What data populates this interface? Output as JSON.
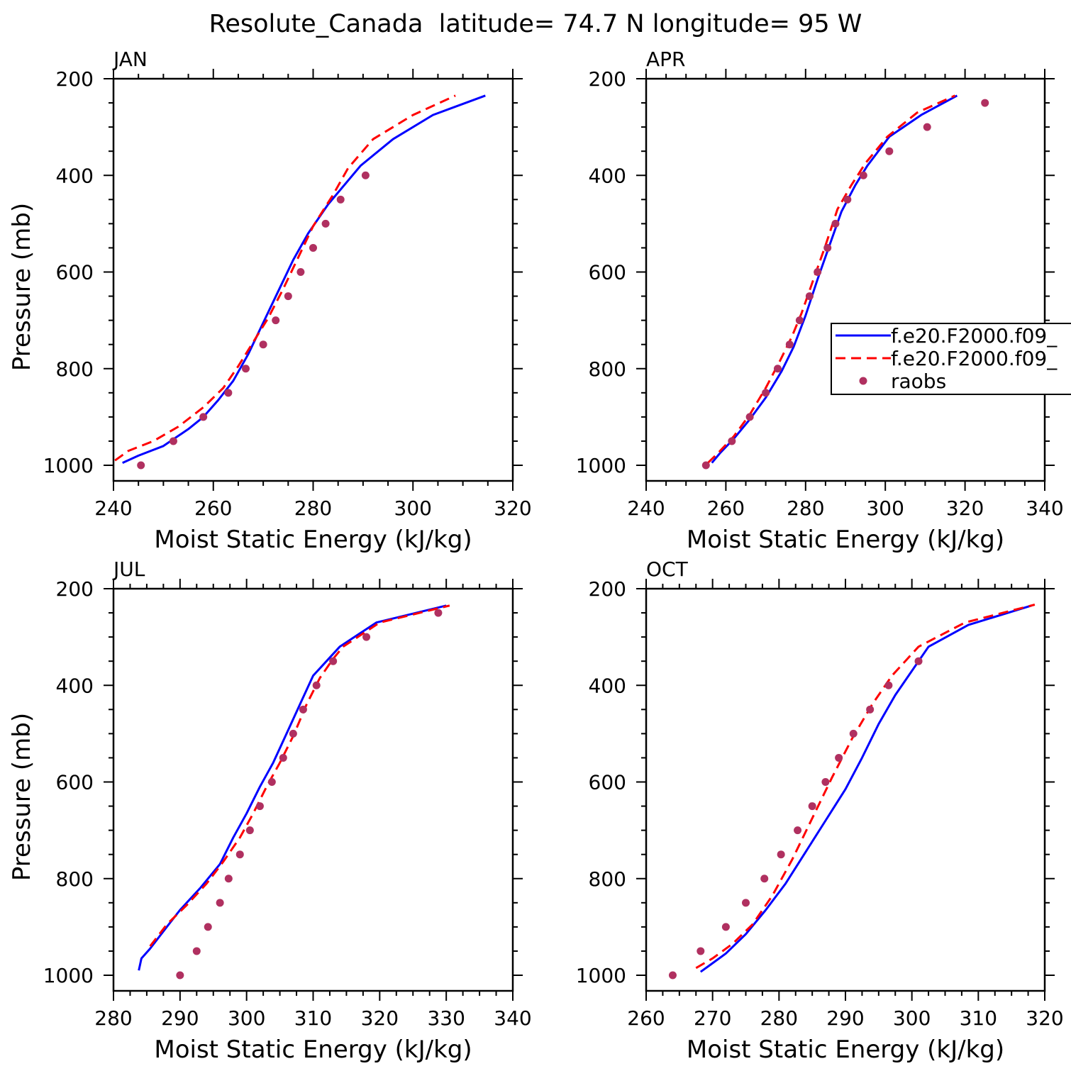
{
  "figure": {
    "title": "Resolute_Canada  latitude= 74.7 N longitude= 95 W",
    "legend": {
      "entries": [
        "f.e20.F2000.f09_",
        "f.e20.F2000.f09_",
        "raobs"
      ]
    }
  },
  "colors": {
    "model1": "#0000ff",
    "model2": "#ff0000",
    "raobs": "#b03060",
    "axes": "#000000"
  },
  "chart_data": [
    {
      "type": "line",
      "panel_label": "JAN",
      "xlabel": "Moist Static Energy (kJ/kg)",
      "ylabel": "Pressure (mb)",
      "xlim": [
        240,
        320
      ],
      "ylim": [
        1000,
        200
      ],
      "xticks": [
        240,
        260,
        280,
        300,
        320
      ],
      "yticks": [
        200,
        400,
        600,
        800,
        1000
      ],
      "series": [
        {
          "name": "f.e20.F2000.f09_",
          "style": "solid",
          "x": [
            241.8,
            245,
            250,
            255,
            258,
            261,
            264,
            267,
            270,
            273,
            276,
            279,
            283,
            289.5,
            296,
            304,
            314.5
          ],
          "y": [
            995,
            980,
            960,
            925,
            900,
            865,
            825,
            770,
            705,
            640,
            575,
            520,
            460,
            380,
            325,
            275,
            235
          ]
        },
        {
          "name": "f.e20.F2000.f09_",
          "style": "dashed",
          "x": [
            240.3,
            243,
            248,
            253,
            258,
            262,
            265,
            268,
            271,
            274,
            277,
            280,
            284,
            287,
            292,
            300,
            308.5
          ],
          "y": [
            990,
            970,
            950,
            920,
            880,
            840,
            795,
            745,
            695,
            635,
            570,
            505,
            440,
            385,
            325,
            275,
            235
          ]
        },
        {
          "name": "raobs",
          "style": "markers",
          "x": [
            245.5,
            252,
            258,
            263,
            266.5,
            270,
            272.5,
            275,
            277.5,
            280,
            282.5,
            285.5,
            290.5
          ],
          "y": [
            1000,
            950,
            900,
            850,
            800,
            750,
            700,
            650,
            600,
            550,
            500,
            450,
            400
          ]
        }
      ]
    },
    {
      "type": "line",
      "panel_label": "APR",
      "xlabel": "Moist Static Energy (kJ/kg)",
      "ylabel": "",
      "xlim": [
        240,
        340
      ],
      "ylim": [
        1000,
        200
      ],
      "xticks": [
        240,
        260,
        280,
        300,
        320,
        340
      ],
      "yticks": [
        200,
        400,
        600,
        800,
        1000
      ],
      "series": [
        {
          "name": "f.e20.F2000.f09_",
          "style": "solid",
          "x": [
            256.5,
            258.5,
            262,
            266,
            270,
            274,
            277,
            280,
            283,
            286,
            289,
            292.5,
            295.5,
            301,
            309,
            318
          ],
          "y": [
            995,
            975,
            945,
            905,
            860,
            805,
            755,
            690,
            615,
            545,
            475,
            420,
            380,
            320,
            275,
            235
          ]
        },
        {
          "name": "f.e20.F2000.f09_",
          "style": "dashed",
          "x": [
            255.5,
            258,
            262,
            266,
            270,
            273.5,
            276.5,
            279,
            282,
            285,
            288,
            291.5,
            295,
            300.5,
            308,
            317.5
          ],
          "y": [
            995,
            975,
            940,
            895,
            840,
            785,
            735,
            685,
            615,
            545,
            470,
            420,
            375,
            320,
            270,
            235
          ]
        },
        {
          "name": "raobs",
          "style": "markers",
          "x": [
            255,
            261.5,
            266,
            270,
            273,
            276,
            278.5,
            281,
            283,
            285.5,
            287.5,
            290.5,
            294.5,
            301,
            310.5,
            325
          ],
          "y": [
            1000,
            950,
            900,
            850,
            800,
            750,
            700,
            650,
            600,
            550,
            500,
            450,
            400,
            350,
            300,
            250
          ]
        }
      ]
    },
    {
      "type": "line",
      "panel_label": "JUL",
      "xlabel": "Moist Static Energy (kJ/kg)",
      "ylabel": "Pressure (mb)",
      "xlim": [
        280,
        340
      ],
      "ylim": [
        1000,
        200
      ],
      "xticks": [
        280,
        290,
        300,
        310,
        320,
        330,
        340
      ],
      "yticks": [
        200,
        400,
        600,
        800,
        1000
      ],
      "series": [
        {
          "name": "f.e20.F2000.f09_",
          "style": "solid",
          "x": [
            283.8,
            284.2,
            285.5,
            288,
            290,
            293,
            296,
            298,
            300,
            302,
            304,
            306,
            308,
            310,
            312,
            314,
            319.5,
            330
          ],
          "y": [
            990,
            965,
            945,
            900,
            865,
            820,
            770,
            715,
            665,
            610,
            560,
            500,
            440,
            380,
            350,
            320,
            270,
            235
          ]
        },
        {
          "name": "f.e20.F2000.f09_",
          "style": "dashed",
          "x": [
            285.5,
            288,
            291,
            294,
            296.5,
            299,
            301,
            303,
            305,
            307,
            309,
            311,
            313,
            314.5,
            320,
            330.5
          ],
          "y": [
            940,
            895,
            855,
            810,
            765,
            715,
            665,
            610,
            560,
            505,
            440,
            385,
            345,
            320,
            270,
            235
          ]
        },
        {
          "name": "raobs",
          "style": "markers",
          "x": [
            290,
            292.5,
            294.2,
            296,
            297.3,
            299,
            300.5,
            302,
            303.8,
            305.5,
            307,
            308.5,
            310.5,
            313,
            318,
            328.8
          ],
          "y": [
            1000,
            950,
            900,
            850,
            800,
            750,
            700,
            650,
            600,
            550,
            500,
            450,
            400,
            350,
            300,
            250
          ]
        }
      ]
    },
    {
      "type": "line",
      "panel_label": "OCT",
      "xlabel": "Moist Static Energy (kJ/kg)",
      "ylabel": "",
      "xlim": [
        260,
        320
      ],
      "ylim": [
        1000,
        200
      ],
      "xticks": [
        260,
        270,
        280,
        290,
        300,
        310,
        320
      ],
      "yticks": [
        200,
        400,
        600,
        800,
        1000
      ],
      "series": [
        {
          "name": "f.e20.F2000.f09_",
          "style": "solid",
          "x": [
            268.2,
            269.5,
            272,
            275,
            278,
            281,
            284,
            287,
            290,
            292.5,
            295,
            297.5,
            302.5,
            308.5,
            318
          ],
          "y": [
            993,
            980,
            955,
            915,
            865,
            810,
            745,
            680,
            615,
            550,
            480,
            420,
            320,
            275,
            235
          ]
        },
        {
          "name": "f.e20.F2000.f09_",
          "style": "dashed",
          "x": [
            267.5,
            270,
            273,
            276,
            279,
            282,
            285,
            288,
            291,
            294,
            297,
            301,
            308,
            318.5
          ],
          "y": [
            985,
            965,
            935,
            895,
            835,
            760,
            675,
            590,
            510,
            440,
            380,
            320,
            270,
            233
          ]
        },
        {
          "name": "raobs",
          "style": "markers",
          "x": [
            264,
            268.2,
            272,
            275,
            277.8,
            280.3,
            282.8,
            285,
            287,
            289,
            291.2,
            293.7,
            296.5,
            301
          ],
          "y": [
            1000,
            950,
            900,
            850,
            800,
            750,
            700,
            650,
            600,
            550,
            500,
            450,
            400,
            350
          ]
        }
      ]
    }
  ]
}
